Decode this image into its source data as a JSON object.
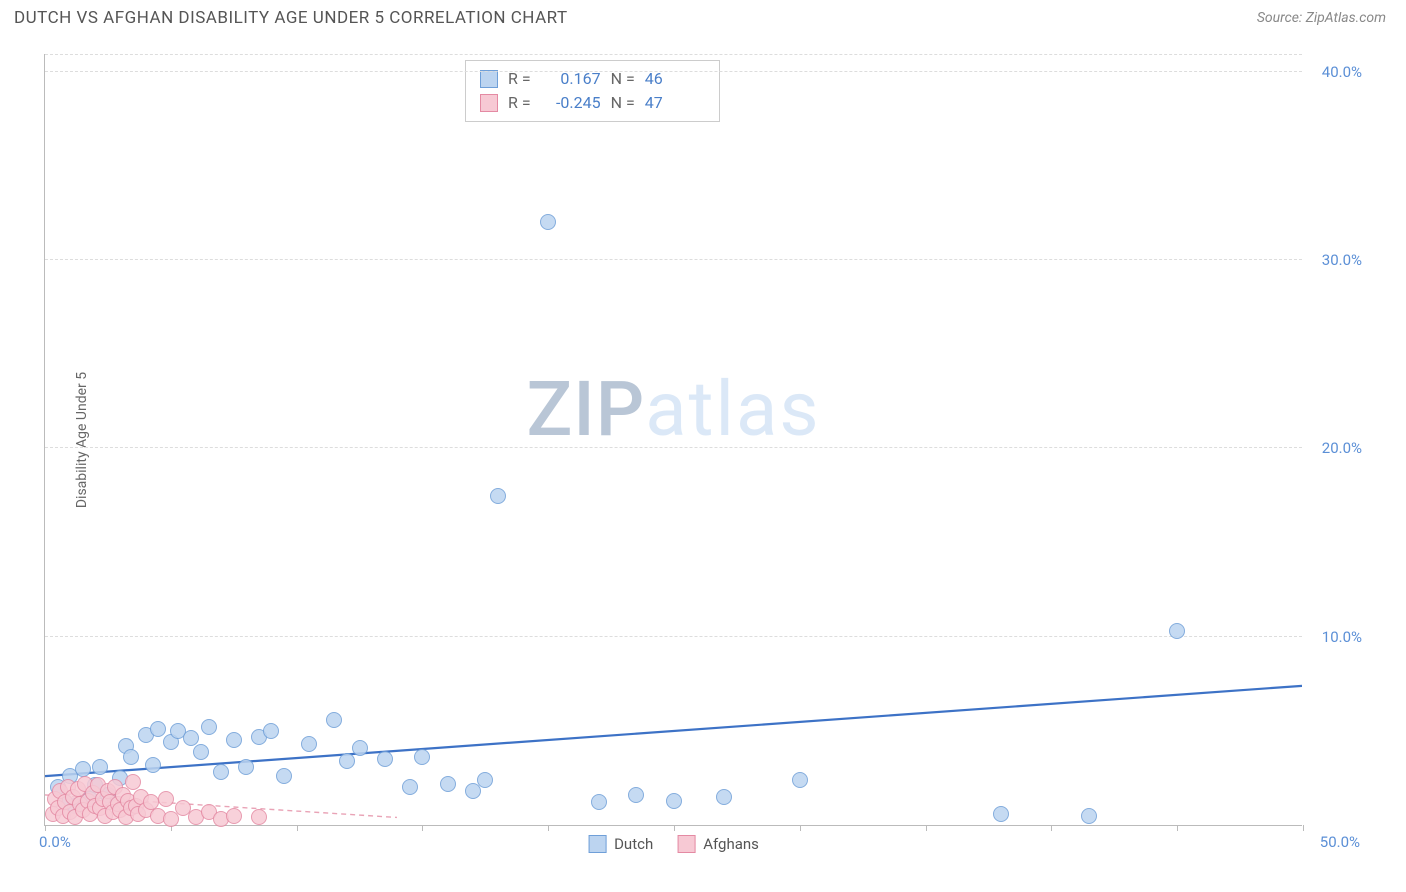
{
  "title": "DUTCH VS AFGHAN DISABILITY AGE UNDER 5 CORRELATION CHART",
  "source_label": "Source: ZipAtlas.com",
  "y_axis_title": "Disability Age Under 5",
  "watermark": {
    "part1": "ZIP",
    "part2": "atlas"
  },
  "chart": {
    "type": "scatter",
    "xlim": [
      0,
      50
    ],
    "ylim": [
      0,
      41
    ],
    "x_ticks": [
      0,
      5,
      10,
      15,
      20,
      25,
      30,
      35,
      40,
      45,
      50
    ],
    "y_gridlines": [
      10,
      20,
      30,
      40
    ],
    "y_tick_labels": [
      "10.0%",
      "20.0%",
      "30.0%",
      "40.0%"
    ],
    "x_origin_label": "0.0%",
    "x_max_label": "50.0%",
    "background_color": "#ffffff",
    "grid_color": "#dddddd",
    "axis_color": "#bbbbbb",
    "tick_label_color": "#5b8fd6",
    "marker_radius": 8,
    "marker_border_width": 1.4,
    "series": [
      {
        "name": "Dutch",
        "fill": "#bcd4f0",
        "stroke": "#6f9fd8",
        "trend_color": "#3d72c6",
        "trend_width": 2.2,
        "trend_dash": "none",
        "trend": {
          "x1": 0,
          "y1": 2.6,
          "x2": 50,
          "y2": 7.4
        },
        "r_value": "0.167",
        "n_value": "46",
        "points": [
          [
            0.5,
            2.0
          ],
          [
            0.8,
            1.2
          ],
          [
            1.0,
            2.6
          ],
          [
            1.2,
            1.0
          ],
          [
            1.5,
            3.0
          ],
          [
            1.8,
            1.4
          ],
          [
            2.0,
            2.1
          ],
          [
            2.2,
            3.1
          ],
          [
            2.5,
            1.6
          ],
          [
            3.0,
            2.5
          ],
          [
            3.2,
            4.2
          ],
          [
            3.4,
            3.6
          ],
          [
            4.0,
            4.8
          ],
          [
            4.3,
            3.2
          ],
          [
            4.5,
            5.1
          ],
          [
            5.0,
            4.4
          ],
          [
            5.3,
            5.0
          ],
          [
            5.8,
            4.6
          ],
          [
            6.2,
            3.9
          ],
          [
            6.5,
            5.2
          ],
          [
            7.0,
            2.8
          ],
          [
            7.5,
            4.5
          ],
          [
            8.0,
            3.1
          ],
          [
            8.5,
            4.7
          ],
          [
            9.0,
            5.0
          ],
          [
            9.5,
            2.6
          ],
          [
            10.5,
            4.3
          ],
          [
            11.5,
            5.6
          ],
          [
            12.0,
            3.4
          ],
          [
            12.5,
            4.1
          ],
          [
            13.5,
            3.5
          ],
          [
            14.5,
            2.0
          ],
          [
            15.0,
            3.6
          ],
          [
            16.0,
            2.2
          ],
          [
            17.0,
            1.8
          ],
          [
            17.5,
            2.4
          ],
          [
            18.0,
            17.5
          ],
          [
            20.0,
            32.0
          ],
          [
            22.0,
            1.2
          ],
          [
            23.5,
            1.6
          ],
          [
            25.0,
            1.3
          ],
          [
            27.0,
            1.5
          ],
          [
            30.0,
            2.4
          ],
          [
            38.0,
            0.6
          ],
          [
            41.5,
            0.5
          ],
          [
            45.0,
            10.3
          ]
        ]
      },
      {
        "name": "Afghans",
        "fill": "#f7c9d4",
        "stroke": "#e48aa3",
        "trend_color": "#e9a3b6",
        "trend_width": 1.4,
        "trend_dash": "5,4",
        "trend": {
          "x1": 0,
          "y1": 1.6,
          "x2": 14,
          "y2": 0.4
        },
        "r_value": "-0.245",
        "n_value": "47",
        "points": [
          [
            0.3,
            0.6
          ],
          [
            0.4,
            1.4
          ],
          [
            0.5,
            0.9
          ],
          [
            0.6,
            1.8
          ],
          [
            0.7,
            0.5
          ],
          [
            0.8,
            1.2
          ],
          [
            0.9,
            2.0
          ],
          [
            1.0,
            0.7
          ],
          [
            1.1,
            1.5
          ],
          [
            1.2,
            0.4
          ],
          [
            1.3,
            1.9
          ],
          [
            1.4,
            1.1
          ],
          [
            1.5,
            0.8
          ],
          [
            1.6,
            2.2
          ],
          [
            1.7,
            1.3
          ],
          [
            1.8,
            0.6
          ],
          [
            1.9,
            1.7
          ],
          [
            2.0,
            1.0
          ],
          [
            2.1,
            2.1
          ],
          [
            2.2,
            0.9
          ],
          [
            2.3,
            1.4
          ],
          [
            2.4,
            0.5
          ],
          [
            2.5,
            1.8
          ],
          [
            2.6,
            1.2
          ],
          [
            2.7,
            0.7
          ],
          [
            2.8,
            2.0
          ],
          [
            2.9,
            1.1
          ],
          [
            3.0,
            0.8
          ],
          [
            3.1,
            1.6
          ],
          [
            3.2,
            0.4
          ],
          [
            3.3,
            1.3
          ],
          [
            3.4,
            0.9
          ],
          [
            3.5,
            2.3
          ],
          [
            3.6,
            1.0
          ],
          [
            3.7,
            0.6
          ],
          [
            3.8,
            1.5
          ],
          [
            4.0,
            0.8
          ],
          [
            4.2,
            1.2
          ],
          [
            4.5,
            0.5
          ],
          [
            4.8,
            1.4
          ],
          [
            5.0,
            0.3
          ],
          [
            5.5,
            0.9
          ],
          [
            6.0,
            0.4
          ],
          [
            6.5,
            0.7
          ],
          [
            7.0,
            0.3
          ],
          [
            7.5,
            0.5
          ],
          [
            8.5,
            0.4
          ]
        ]
      }
    ]
  },
  "legend_top": {
    "r_label": "R =",
    "n_label": "N ="
  },
  "legend_bottom": [
    {
      "label": "Dutch",
      "fill": "#bcd4f0",
      "stroke": "#6f9fd8"
    },
    {
      "label": "Afghans",
      "fill": "#f7c9d4",
      "stroke": "#e48aa3"
    }
  ]
}
